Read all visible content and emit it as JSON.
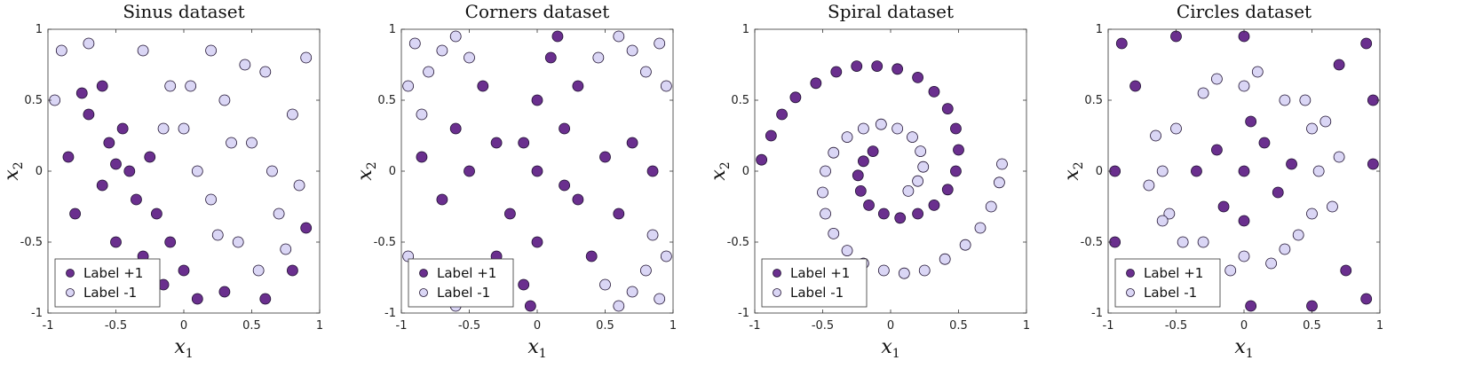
{
  "colors": {
    "pos": "#6a2f8e",
    "neg": "#dad6f5",
    "edge": "#1e1030"
  },
  "chart_data": [
    {
      "type": "scatter",
      "id": "sinus",
      "title": "Sinus dataset",
      "xlabel": "x",
      "xlabel_sub": "1",
      "ylabel": "x",
      "ylabel_sub": "2",
      "xlim": [
        -1,
        1
      ],
      "ylim": [
        -1,
        1
      ],
      "xticks": [
        "-1",
        "-0.5",
        "0",
        "0.5",
        "1"
      ],
      "yticks": [
        "-1",
        "-0.5",
        "0",
        "0.5",
        "1"
      ],
      "legend": {
        "location": "bottom-left",
        "entries": [
          "Label +1",
          "Label -1"
        ]
      },
      "series": [
        {
          "name": "Label +1",
          "points": [
            [
              -0.85,
              0.1
            ],
            [
              -0.8,
              -0.3
            ],
            [
              -0.7,
              0.4
            ],
            [
              -0.6,
              0.6
            ],
            [
              -0.55,
              0.2
            ],
            [
              -0.5,
              -0.5
            ],
            [
              -0.45,
              0.3
            ],
            [
              -0.4,
              0.0
            ],
            [
              -0.35,
              -0.2
            ],
            [
              -0.3,
              -0.6
            ],
            [
              -0.25,
              0.1
            ],
            [
              -0.2,
              -0.3
            ],
            [
              -0.15,
              -0.8
            ],
            [
              -0.1,
              -0.5
            ],
            [
              0.0,
              -0.7
            ],
            [
              0.1,
              -0.9
            ],
            [
              0.3,
              -0.85
            ],
            [
              0.6,
              -0.9
            ],
            [
              0.8,
              -0.7
            ],
            [
              0.9,
              -0.4
            ],
            [
              -0.9,
              -0.7
            ],
            [
              -0.65,
              -0.9
            ],
            [
              -0.75,
              0.55
            ],
            [
              -0.6,
              -0.1
            ],
            [
              -0.5,
              0.05
            ]
          ]
        },
        {
          "name": "Label -1",
          "points": [
            [
              -0.9,
              0.85
            ],
            [
              -0.7,
              0.9
            ],
            [
              -0.3,
              0.85
            ],
            [
              -0.1,
              0.6
            ],
            [
              0.0,
              0.3
            ],
            [
              0.1,
              0.0
            ],
            [
              0.2,
              -0.2
            ],
            [
              0.3,
              0.5
            ],
            [
              0.4,
              -0.5
            ],
            [
              0.5,
              0.2
            ],
            [
              0.55,
              -0.7
            ],
            [
              0.6,
              0.7
            ],
            [
              0.7,
              -0.3
            ],
            [
              0.8,
              0.4
            ],
            [
              0.9,
              0.8
            ],
            [
              0.2,
              0.85
            ],
            [
              -0.15,
              0.3
            ],
            [
              0.05,
              0.6
            ],
            [
              0.65,
              0.0
            ],
            [
              0.85,
              -0.1
            ],
            [
              -0.95,
              0.5
            ],
            [
              0.35,
              0.2
            ],
            [
              0.45,
              0.75
            ],
            [
              0.75,
              -0.55
            ],
            [
              0.25,
              -0.45
            ]
          ]
        }
      ]
    },
    {
      "type": "scatter",
      "id": "corners",
      "title": "Corners dataset",
      "xlabel": "x",
      "xlabel_sub": "1",
      "ylabel": "x",
      "ylabel_sub": "2",
      "xlim": [
        -1,
        1
      ],
      "ylim": [
        -1,
        1
      ],
      "xticks": [
        "-1",
        "-0.5",
        "0",
        "0.5",
        "1"
      ],
      "yticks": [
        "-1",
        "-0.5",
        "0",
        "0.5",
        "1"
      ],
      "legend": {
        "location": "bottom-left",
        "entries": [
          "Label +1",
          "Label -1"
        ]
      },
      "series": [
        {
          "name": "Label +1",
          "points": [
            [
              0.0,
              0.0
            ],
            [
              -0.3,
              0.2
            ],
            [
              0.3,
              -0.2
            ],
            [
              -0.5,
              0.0
            ],
            [
              0.5,
              0.1
            ],
            [
              0.0,
              0.5
            ],
            [
              0.0,
              -0.5
            ],
            [
              -0.2,
              -0.3
            ],
            [
              0.2,
              0.3
            ],
            [
              -0.6,
              0.3
            ],
            [
              0.6,
              -0.3
            ],
            [
              0.1,
              0.8
            ],
            [
              -0.1,
              -0.8
            ],
            [
              0.3,
              0.6
            ],
            [
              -0.3,
              -0.6
            ],
            [
              0.7,
              0.2
            ],
            [
              -0.7,
              -0.2
            ],
            [
              0.4,
              -0.6
            ],
            [
              -0.4,
              0.6
            ],
            [
              0.2,
              -0.1
            ],
            [
              -0.1,
              0.2
            ],
            [
              0.85,
              0.0
            ],
            [
              -0.85,
              0.1
            ],
            [
              0.15,
              0.95
            ],
            [
              -0.05,
              -0.95
            ]
          ]
        },
        {
          "name": "Label -1",
          "points": [
            [
              -0.9,
              0.9
            ],
            [
              -0.8,
              0.7
            ],
            [
              -0.7,
              0.85
            ],
            [
              -0.95,
              0.6
            ],
            [
              -0.6,
              0.95
            ],
            [
              0.9,
              0.9
            ],
            [
              0.8,
              0.7
            ],
            [
              0.7,
              0.85
            ],
            [
              0.95,
              0.6
            ],
            [
              0.6,
              0.95
            ],
            [
              -0.9,
              -0.9
            ],
            [
              -0.8,
              -0.7
            ],
            [
              -0.7,
              -0.85
            ],
            [
              -0.95,
              -0.6
            ],
            [
              -0.6,
              -0.95
            ],
            [
              0.9,
              -0.9
            ],
            [
              0.8,
              -0.7
            ],
            [
              0.7,
              -0.85
            ],
            [
              0.95,
              -0.6
            ],
            [
              0.6,
              -0.95
            ],
            [
              -0.85,
              0.4
            ],
            [
              0.85,
              -0.45
            ],
            [
              -0.5,
              0.8
            ],
            [
              0.5,
              -0.8
            ],
            [
              0.45,
              0.8
            ]
          ]
        }
      ]
    },
    {
      "type": "scatter",
      "id": "spiral",
      "title": "Spiral dataset",
      "xlabel": "x",
      "xlabel_sub": "1",
      "ylabel": "x",
      "ylabel_sub": "2",
      "xlim": [
        -1,
        1
      ],
      "ylim": [
        -1,
        1
      ],
      "xticks": [
        "-1",
        "-0.5",
        "0",
        "0.5",
        "1"
      ],
      "yticks": [
        "-1",
        "-0.5",
        "0",
        "0.5",
        "1"
      ],
      "legend": {
        "location": "bottom-left",
        "entries": [
          "Label +1",
          "Label -1"
        ]
      },
      "series": [
        {
          "name": "Label +1",
          "points": [
            [
              -0.95,
              0.08
            ],
            [
              -0.88,
              0.25
            ],
            [
              -0.8,
              0.4
            ],
            [
              -0.7,
              0.52
            ],
            [
              -0.55,
              0.62
            ],
            [
              -0.4,
              0.7
            ],
            [
              -0.25,
              0.74
            ],
            [
              -0.1,
              0.74
            ],
            [
              0.05,
              0.72
            ],
            [
              0.2,
              0.66
            ],
            [
              0.32,
              0.56
            ],
            [
              0.42,
              0.44
            ],
            [
              0.48,
              0.3
            ],
            [
              0.5,
              0.15
            ],
            [
              0.48,
              0.0
            ],
            [
              0.42,
              -0.13
            ],
            [
              0.32,
              -0.24
            ],
            [
              0.2,
              -0.3
            ],
            [
              0.07,
              -0.33
            ],
            [
              -0.05,
              -0.3
            ],
            [
              -0.16,
              -0.24
            ],
            [
              -0.22,
              -0.14
            ],
            [
              -0.24,
              -0.03
            ],
            [
              -0.2,
              0.07
            ],
            [
              -0.13,
              0.14
            ]
          ]
        },
        {
          "name": "Label -1",
          "points": [
            [
              0.13,
              -0.14
            ],
            [
              0.2,
              -0.07
            ],
            [
              0.24,
              0.03
            ],
            [
              0.22,
              0.14
            ],
            [
              0.16,
              0.24
            ],
            [
              0.05,
              0.3
            ],
            [
              -0.07,
              0.33
            ],
            [
              -0.2,
              0.3
            ],
            [
              -0.32,
              0.24
            ],
            [
              -0.42,
              0.13
            ],
            [
              -0.48,
              0.0
            ],
            [
              -0.5,
              -0.15
            ],
            [
              -0.48,
              -0.3
            ],
            [
              -0.42,
              -0.44
            ],
            [
              -0.32,
              -0.56
            ],
            [
              -0.2,
              -0.65
            ],
            [
              -0.05,
              -0.7
            ],
            [
              0.1,
              -0.72
            ],
            [
              0.25,
              -0.7
            ],
            [
              0.4,
              -0.62
            ],
            [
              0.55,
              -0.52
            ],
            [
              0.66,
              -0.4
            ],
            [
              0.74,
              -0.25
            ],
            [
              0.8,
              -0.08
            ],
            [
              0.82,
              0.05
            ]
          ]
        }
      ]
    },
    {
      "type": "scatter",
      "id": "circles",
      "title": "Circles dataset",
      "xlabel": "x",
      "xlabel_sub": "1",
      "ylabel": "x",
      "ylabel_sub": "2",
      "xlim": [
        -1,
        1
      ],
      "ylim": [
        -1,
        1
      ],
      "xticks": [
        "-1",
        "-0.5",
        "0",
        "0.5",
        "1"
      ],
      "yticks": [
        "-1",
        "-0.5",
        "0",
        "0.5",
        "1"
      ],
      "legend": {
        "location": "bottom-left",
        "entries": [
          "Label +1",
          "Label -1"
        ]
      },
      "series": [
        {
          "name": "Label +1",
          "points": [
            [
              0.0,
              0.0
            ],
            [
              0.15,
              0.2
            ],
            [
              -0.2,
              0.15
            ],
            [
              0.25,
              -0.15
            ],
            [
              -0.15,
              -0.25
            ],
            [
              0.05,
              0.35
            ],
            [
              -0.35,
              0.0
            ],
            [
              0.35,
              0.05
            ],
            [
              0.0,
              -0.35
            ],
            [
              -0.9,
              0.9
            ],
            [
              0.9,
              0.9
            ],
            [
              -0.9,
              -0.9
            ],
            [
              0.9,
              -0.9
            ],
            [
              -0.95,
              0.0
            ],
            [
              0.95,
              0.05
            ],
            [
              0.0,
              0.95
            ],
            [
              0.05,
              -0.95
            ],
            [
              -0.8,
              0.6
            ],
            [
              0.7,
              0.75
            ],
            [
              -0.7,
              -0.75
            ],
            [
              0.75,
              -0.7
            ],
            [
              -0.95,
              -0.5
            ],
            [
              0.95,
              0.5
            ],
            [
              -0.5,
              0.95
            ],
            [
              0.5,
              -0.95
            ]
          ]
        },
        {
          "name": "Label -1",
          "points": [
            [
              0.55,
              0.0
            ],
            [
              0.5,
              0.3
            ],
            [
              0.3,
              0.5
            ],
            [
              0.0,
              0.6
            ],
            [
              -0.3,
              0.55
            ],
            [
              -0.5,
              0.3
            ],
            [
              -0.6,
              0.0
            ],
            [
              -0.55,
              -0.3
            ],
            [
              -0.3,
              -0.5
            ],
            [
              0.0,
              -0.6
            ],
            [
              0.3,
              -0.55
            ],
            [
              0.5,
              -0.3
            ],
            [
              0.7,
              0.1
            ],
            [
              -0.7,
              -0.1
            ],
            [
              0.1,
              0.7
            ],
            [
              -0.1,
              -0.7
            ],
            [
              0.45,
              0.5
            ],
            [
              -0.45,
              -0.5
            ],
            [
              0.65,
              -0.25
            ],
            [
              -0.65,
              0.25
            ],
            [
              0.2,
              -0.65
            ],
            [
              -0.2,
              0.65
            ],
            [
              0.6,
              0.35
            ],
            [
              -0.6,
              -0.35
            ],
            [
              0.4,
              -0.45
            ]
          ]
        }
      ]
    }
  ]
}
